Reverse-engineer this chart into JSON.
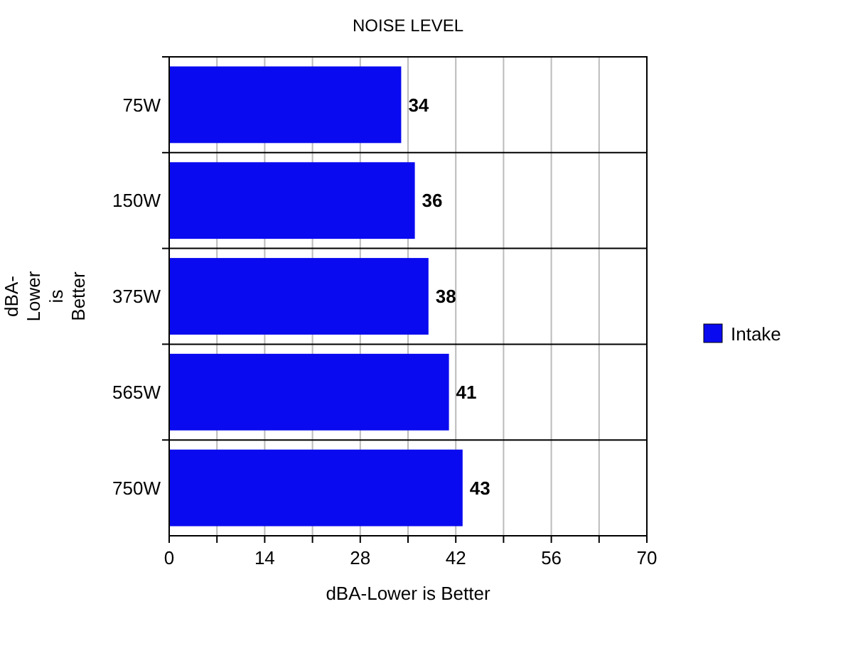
{
  "chart_data": {
    "type": "bar",
    "orientation": "horizontal",
    "title": "NOISE LEVEL",
    "xlabel": "dBA-Lower is Better",
    "ylabel": "dBA-Lower is Better",
    "categories": [
      "75W",
      "150W",
      "375W",
      "565W",
      "750W"
    ],
    "series": [
      {
        "name": "Intake",
        "color": "#0a0af0",
        "values": [
          34,
          36,
          38,
          41,
          43
        ]
      }
    ],
    "xlim": [
      0,
      70
    ],
    "xticks": [
      0,
      {
        "value": 7,
        "label": null
      },
      14,
      {
        "value": 21,
        "label": null
      },
      28,
      {
        "value": 35,
        "label": null
      },
      42,
      {
        "value": 49,
        "label": null
      },
      56,
      {
        "value": 63,
        "label": null
      },
      70
    ],
    "grid": "x",
    "legend": "right",
    "data_labels": true
  }
}
